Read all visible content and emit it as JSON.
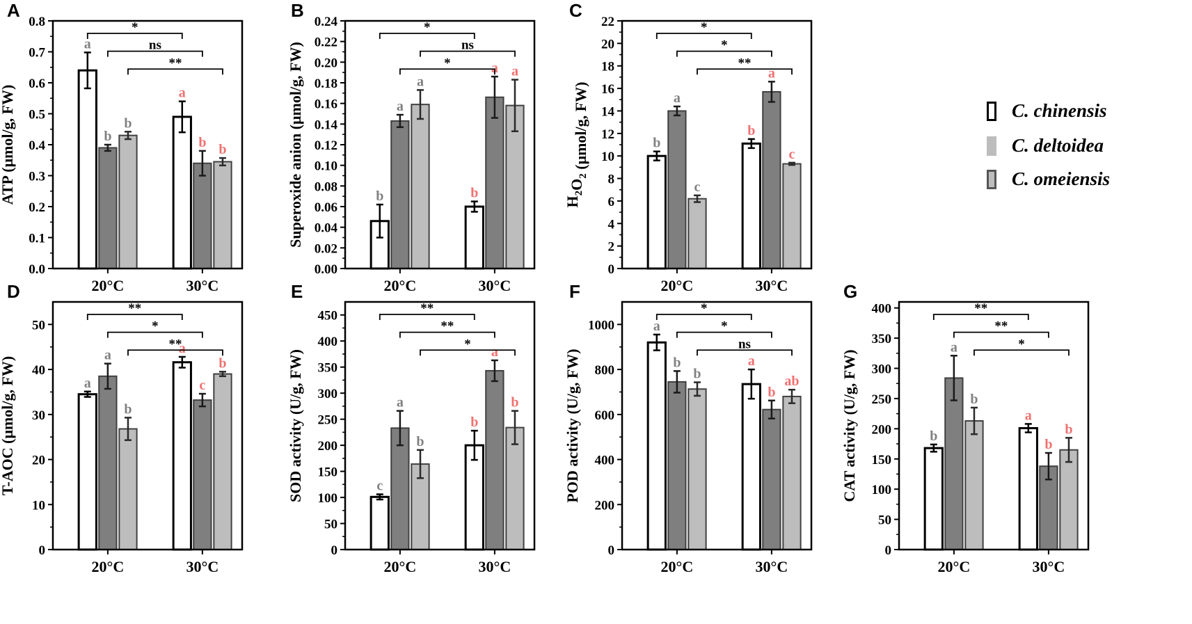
{
  "colors": {
    "open_bar_stroke": "#000000",
    "dark_bar_fill": "#7f7f7f",
    "light_bar_fill": "#bdbdbd",
    "bar_edge": "#404040",
    "letter_20C": "#808080",
    "letter_30C": "#f07070"
  },
  "legend": {
    "items": [
      {
        "label": "C. chinensis",
        "style": "open"
      },
      {
        "label": "C. deltoidea",
        "style": "dark"
      },
      {
        "label": "C. omeiensis",
        "style": "light"
      }
    ]
  },
  "chart_data": [
    {
      "panel": "A",
      "type": "bar",
      "ylabel": "ATP (μmol/g, FW)",
      "categories": [
        "20°C",
        "30°C"
      ],
      "ylim": [
        0,
        0.8
      ],
      "yticks": [
        "0.0",
        "0.1",
        "0.2",
        "0.3",
        "0.4",
        "0.5",
        "0.6",
        "0.7",
        "0.8"
      ],
      "series": [
        {
          "name": "C. chinensis",
          "values": [
            0.64,
            0.49
          ],
          "errors": [
            0.058,
            0.05
          ],
          "letters": [
            "a",
            "a"
          ]
        },
        {
          "name": "C. deltoidea",
          "values": [
            0.39,
            0.34
          ],
          "errors": [
            0.01,
            0.04
          ],
          "letters": [
            "b",
            "b"
          ]
        },
        {
          "name": "C. omeiensis",
          "values": [
            0.43,
            0.345
          ],
          "errors": [
            0.012,
            0.012
          ],
          "letters": [
            "b",
            "b"
          ]
        }
      ],
      "comparisons": [
        {
          "series": 0,
          "label": "*"
        },
        {
          "series": 1,
          "label": "ns"
        },
        {
          "series": 2,
          "label": "**"
        }
      ]
    },
    {
      "panel": "B",
      "type": "bar",
      "ylabel": "Superoxide anion (μmol/g, FW)",
      "categories": [
        "20°C",
        "30°C"
      ],
      "ylim": [
        0,
        0.24
      ],
      "yticks": [
        "0.00",
        "0.02",
        "0.04",
        "0.06",
        "0.08",
        "0.10",
        "0.12",
        "0.14",
        "0.16",
        "0.18",
        "0.20",
        "0.22",
        "0.24"
      ],
      "series": [
        {
          "name": "C. chinensis",
          "values": [
            0.046,
            0.06
          ],
          "errors": [
            0.016,
            0.005
          ],
          "letters": [
            "b",
            "b"
          ]
        },
        {
          "name": "C. deltoidea",
          "values": [
            0.143,
            0.166
          ],
          "errors": [
            0.006,
            0.02
          ],
          "letters": [
            "a",
            "a"
          ]
        },
        {
          "name": "C. omeiensis",
          "values": [
            0.159,
            0.158
          ],
          "errors": [
            0.014,
            0.025
          ],
          "letters": [
            "a",
            "a"
          ]
        }
      ],
      "comparisons": [
        {
          "series": 0,
          "label": "*"
        },
        {
          "series": 2,
          "label": "ns"
        },
        {
          "series": 1,
          "label": "*"
        }
      ]
    },
    {
      "panel": "C",
      "type": "bar",
      "ylabel": "H2O2 (μmol/g, FW)",
      "categories": [
        "20°C",
        "30°C"
      ],
      "ylim": [
        0,
        22
      ],
      "yticks": [
        "0",
        "2",
        "4",
        "6",
        "8",
        "10",
        "12",
        "14",
        "16",
        "18",
        "20",
        "22"
      ],
      "series": [
        {
          "name": "C. chinensis",
          "values": [
            10.0,
            11.1
          ],
          "errors": [
            0.4,
            0.4
          ],
          "letters": [
            "b",
            "b"
          ]
        },
        {
          "name": "C. deltoidea",
          "values": [
            14.0,
            15.7
          ],
          "errors": [
            0.4,
            0.9
          ],
          "letters": [
            "a",
            "a"
          ]
        },
        {
          "name": "C. omeiensis",
          "values": [
            6.2,
            9.3
          ],
          "errors": [
            0.3,
            0.1
          ],
          "letters": [
            "c",
            "c"
          ]
        }
      ],
      "comparisons": [
        {
          "series": 0,
          "label": "*"
        },
        {
          "series": 1,
          "label": "*"
        },
        {
          "series": 2,
          "label": "**"
        }
      ]
    },
    {
      "panel": "D",
      "type": "bar",
      "ylabel": "T-AOC (μmol/g, FW)",
      "categories": [
        "20°C",
        "30°C"
      ],
      "ylim": [
        0,
        55
      ],
      "yticks": [
        "0",
        "10",
        "20",
        "30",
        "40",
        "50"
      ],
      "series": [
        {
          "name": "C. chinensis",
          "values": [
            34.5,
            41.6
          ],
          "errors": [
            0.6,
            1.2
          ],
          "letters": [
            "a",
            "a"
          ]
        },
        {
          "name": "C. deltoidea",
          "values": [
            38.5,
            33.2
          ],
          "errors": [
            2.8,
            1.4
          ],
          "letters": [
            "a",
            "c"
          ]
        },
        {
          "name": "C. omeiensis",
          "values": [
            26.8,
            39.0
          ],
          "errors": [
            2.5,
            0.5
          ],
          "letters": [
            "b",
            "b"
          ]
        }
      ],
      "comparisons": [
        {
          "series": 0,
          "label": "**"
        },
        {
          "series": 1,
          "label": "*"
        },
        {
          "series": 2,
          "label": "**"
        }
      ]
    },
    {
      "panel": "E",
      "type": "bar",
      "ylabel": "SOD activity (U/g, FW)",
      "categories": [
        "20°C",
        "30°C"
      ],
      "ylim": [
        0,
        475
      ],
      "yticks": [
        "0",
        "50",
        "100",
        "150",
        "200",
        "250",
        "300",
        "350",
        "400",
        "450"
      ],
      "series": [
        {
          "name": "C. chinensis",
          "values": [
            101,
            200
          ],
          "errors": [
            5,
            28
          ],
          "letters": [
            "c",
            "b"
          ]
        },
        {
          "name": "C. deltoidea",
          "values": [
            233,
            343
          ],
          "errors": [
            33,
            20
          ],
          "letters": [
            "a",
            "a"
          ]
        },
        {
          "name": "C. omeiensis",
          "values": [
            164,
            234
          ],
          "errors": [
            27,
            32
          ],
          "letters": [
            "b",
            "b"
          ]
        }
      ],
      "comparisons": [
        {
          "series": 0,
          "label": "**"
        },
        {
          "series": 1,
          "label": "**"
        },
        {
          "series": 2,
          "label": "*"
        }
      ]
    },
    {
      "panel": "F",
      "type": "bar",
      "ylabel": "POD activity (U/g, FW)",
      "categories": [
        "20°C",
        "30°C"
      ],
      "ylim": [
        0,
        1100
      ],
      "yticks": [
        "0",
        "200",
        "400",
        "600",
        "800",
        "1000"
      ],
      "series": [
        {
          "name": "C. chinensis",
          "values": [
            920,
            735
          ],
          "errors": [
            35,
            65
          ],
          "letters": [
            "a",
            "a"
          ]
        },
        {
          "name": "C. deltoidea",
          "values": [
            745,
            622
          ],
          "errors": [
            48,
            40
          ],
          "letters": [
            "b",
            "b"
          ]
        },
        {
          "name": "C. omeiensis",
          "values": [
            713,
            680
          ],
          "errors": [
            30,
            30
          ],
          "letters": [
            "b",
            "ab"
          ]
        }
      ],
      "comparisons": [
        {
          "series": 0,
          "label": "*"
        },
        {
          "series": 1,
          "label": "*"
        },
        {
          "series": 2,
          "label": "ns"
        }
      ]
    },
    {
      "panel": "G",
      "type": "bar",
      "ylabel": "CAT activity (U/g, FW)",
      "categories": [
        "20°C",
        "30°C"
      ],
      "ylim": [
        0,
        410
      ],
      "yticks": [
        "0",
        "50",
        "100",
        "150",
        "200",
        "250",
        "300",
        "350",
        "400"
      ],
      "series": [
        {
          "name": "C. chinensis",
          "values": [
            168,
            201
          ],
          "errors": [
            6,
            7
          ],
          "letters": [
            "b",
            "a"
          ]
        },
        {
          "name": "C. deltoidea",
          "values": [
            284,
            138
          ],
          "errors": [
            37,
            22
          ],
          "letters": [
            "a",
            "b"
          ]
        },
        {
          "name": "C. omeiensis",
          "values": [
            213,
            165
          ],
          "errors": [
            22,
            20
          ],
          "letters": [
            "b",
            "b"
          ]
        }
      ],
      "comparisons": [
        {
          "series": 0,
          "label": "**"
        },
        {
          "series": 1,
          "label": "**"
        },
        {
          "series": 2,
          "label": "*"
        }
      ]
    }
  ]
}
